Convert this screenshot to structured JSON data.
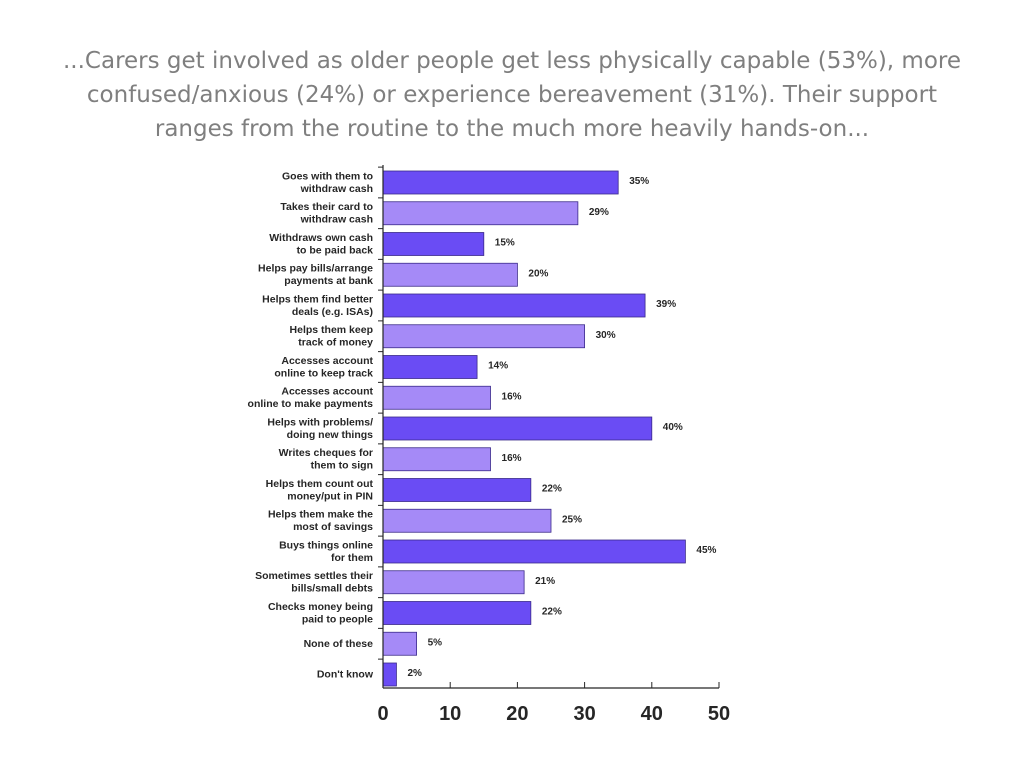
{
  "title_lines": [
    "...Carers get involved as older people get less physically capable (53%), more",
    "confused/anxious (24%) or experience bereavement (31%). Their support",
    "ranges from the routine to the much more heavily hands-on..."
  ],
  "chart_data": {
    "type": "bar",
    "orientation": "horizontal",
    "categories": [
      [
        "Goes with them to",
        "withdraw cash"
      ],
      [
        "Takes their card to",
        "withdraw cash"
      ],
      [
        "Withdraws own cash",
        "to be paid back"
      ],
      [
        "Helps pay bills/arrange",
        "payments at bank"
      ],
      [
        "Helps them find better",
        "deals (e.g. ISAs)"
      ],
      [
        "Helps them keep",
        "track of money"
      ],
      [
        "Accesses account",
        "online to keep track"
      ],
      [
        "Accesses account",
        "online to make payments"
      ],
      [
        "Helps with problems/",
        "doing new things"
      ],
      [
        "Writes cheques for",
        "them to sign"
      ],
      [
        "Helps them count out",
        "money/put in PIN"
      ],
      [
        "Helps them make the",
        "most of savings"
      ],
      [
        "Buys things online",
        "for them"
      ],
      [
        "Sometimes settles their",
        "bills/small debts"
      ],
      [
        "Checks money being",
        "paid to people"
      ],
      [
        "None of these"
      ],
      [
        "Don't know"
      ]
    ],
    "values": [
      35,
      29,
      15,
      20,
      39,
      30,
      14,
      16,
      40,
      16,
      22,
      25,
      45,
      21,
      22,
      5,
      2
    ],
    "value_labels": [
      "35%",
      "29%",
      "15%",
      "20%",
      "39%",
      "30%",
      "14%",
      "16%",
      "40%",
      "16%",
      "22%",
      "25%",
      "45%",
      "21%",
      "22%",
      "5%",
      "2%"
    ],
    "xlim": [
      0,
      50
    ],
    "xticks": [
      0,
      10,
      20,
      30,
      40,
      50
    ],
    "xtick_labels": [
      "0",
      "10",
      "20",
      "30",
      "40",
      "50"
    ],
    "grid": false,
    "colors": {
      "dark": "#6a4cf4",
      "light": "#a58af7",
      "bar_edge": "#3b2a8a",
      "axis": "#262626"
    },
    "color_pattern": "alternating dark/light, starting dark"
  }
}
